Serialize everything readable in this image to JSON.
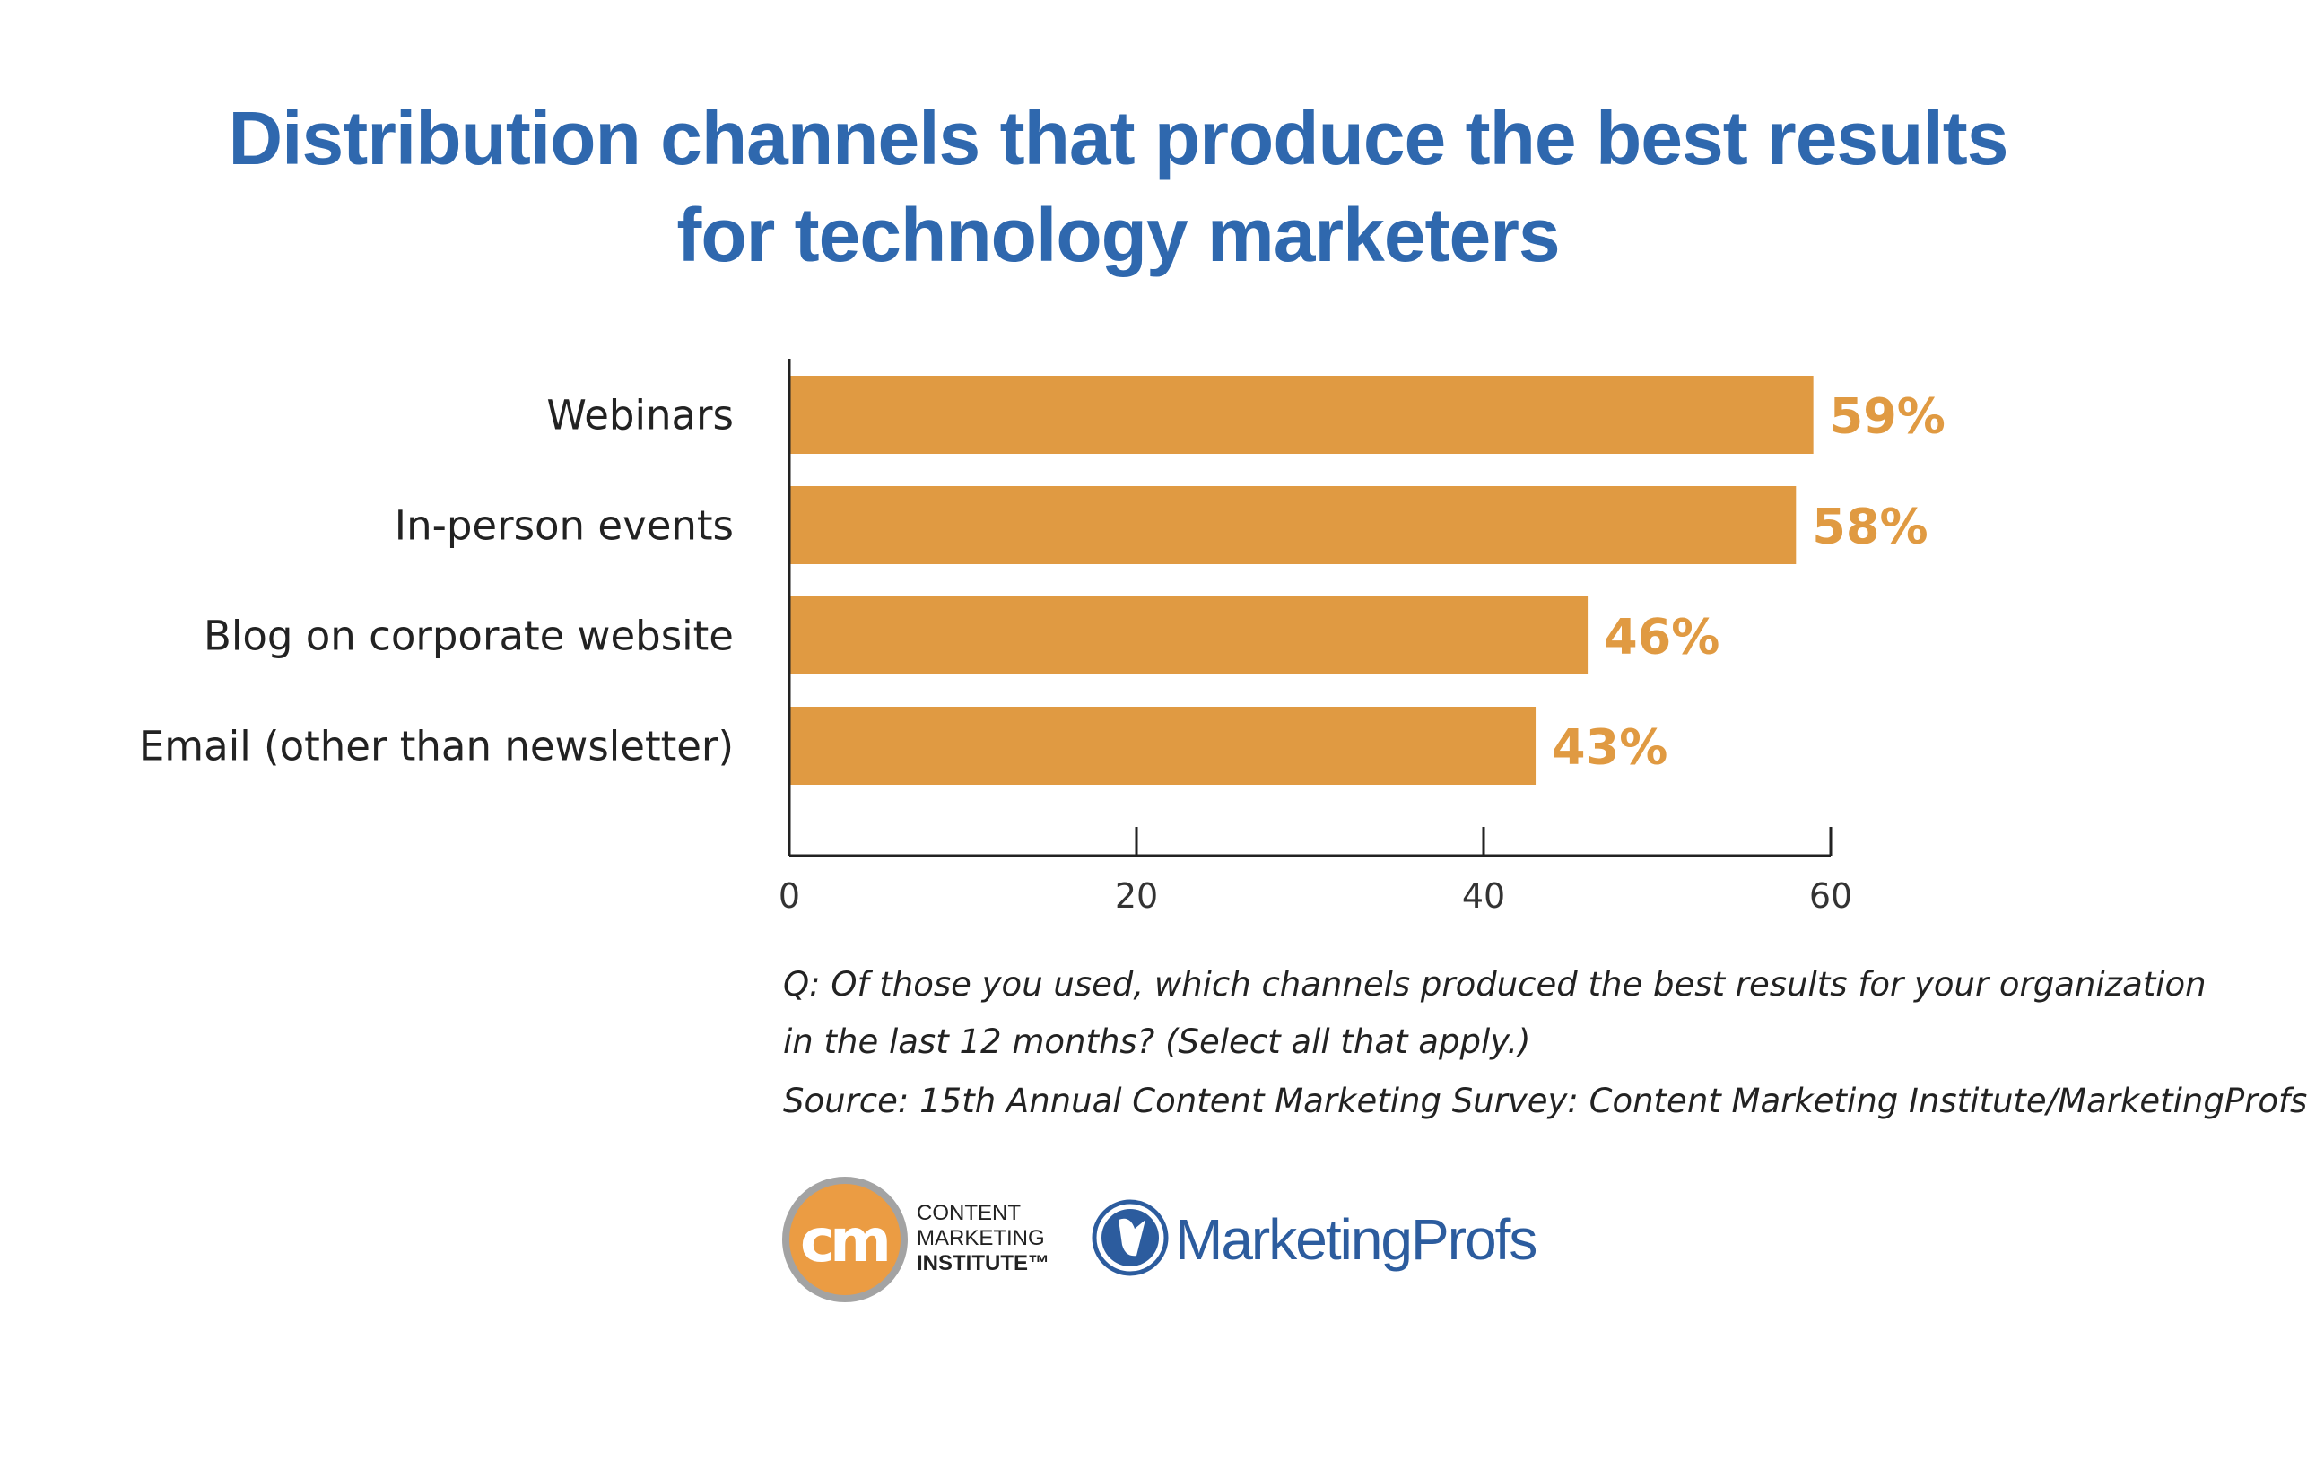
{
  "chart_data": {
    "type": "bar",
    "orientation": "horizontal",
    "title": [
      "Distribution channels that produce the best results",
      "for technology marketers"
    ],
    "categories": [
      "Webinars",
      "In-person events",
      "Blog on corporate website",
      "Email (other than newsletter)"
    ],
    "values": [
      59,
      58,
      46,
      43
    ],
    "data_labels": [
      "59%",
      "58%",
      "46%",
      "43%"
    ],
    "xlim": [
      0,
      60
    ],
    "xticks": [
      0,
      20,
      40,
      60
    ],
    "xtick_labels": [
      "0",
      "20",
      "40",
      "60"
    ],
    "grid": false,
    "colors": {
      "bar": "#e09a42",
      "title": "#2f68ae"
    }
  },
  "notes": [
    "Q: Of those you used, which channels produced the best results for your organization",
    "in the last 12 months? (Select all that apply.)",
    "Source: 15th Annual Content Marketing Survey: Content Marketing Institute/MarketingProfs"
  ],
  "logos": {
    "cmi": {
      "mark": "cm",
      "lines": [
        "CONTENT",
        "MARKETING",
        "INSTITUTE™"
      ]
    },
    "marketingprofs": {
      "text": "MarketingProfs"
    }
  }
}
